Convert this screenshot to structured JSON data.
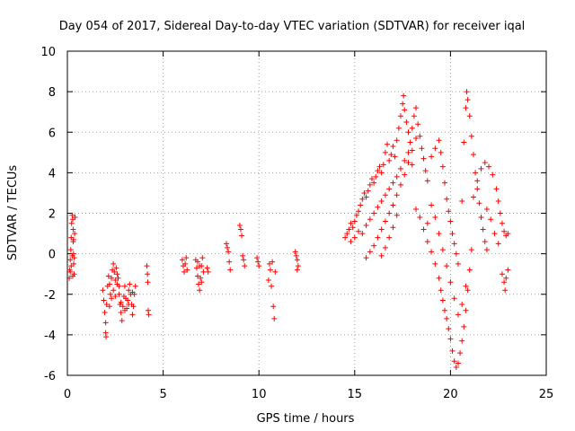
{
  "chart_data": {
    "type": "scatter",
    "title": "Day 054 of 2017, Sidereal Day-to-day VTEC variation (SDTVAR) for receiver iqal",
    "xlabel": "GPS time / hours",
    "ylabel": "SDTVAR / TECUs",
    "xlim": [
      0,
      25
    ],
    "ylim": [
      -6,
      10
    ],
    "xticks": [
      0,
      5,
      10,
      15,
      20,
      25
    ],
    "yticks": [
      -6,
      -4,
      -2,
      0,
      2,
      4,
      6,
      8,
      10
    ],
    "xtick_labels": [
      "0",
      "5",
      "10",
      "15",
      "20",
      "25"
    ],
    "ytick_labels": [
      "-6",
      "-4",
      "-2",
      "0",
      "2",
      "4",
      "6",
      "8",
      "10"
    ],
    "grid": true,
    "marker": "+",
    "series": [
      {
        "name": "SDTVAR",
        "color": "#ff0000",
        "points": [
          [
            0.1,
            -1.2
          ],
          [
            0.12,
            -0.8
          ],
          [
            0.15,
            -0.3
          ],
          [
            0.18,
            0.2
          ],
          [
            0.2,
            0.8
          ],
          [
            0.22,
            1.5
          ],
          [
            0.25,
            1.9
          ],
          [
            0.28,
            1.7
          ],
          [
            0.3,
            1.2
          ],
          [
            0.3,
            0.6
          ],
          [
            0.32,
            0.0
          ],
          [
            0.33,
            -0.5
          ],
          [
            0.35,
            -1.0
          ],
          [
            0.36,
            -0.2
          ],
          [
            0.38,
            1.0
          ],
          [
            0.4,
            1.8
          ],
          [
            0.15,
            -0.9
          ],
          [
            0.2,
            -0.6
          ],
          [
            0.25,
            -0.1
          ],
          [
            0.32,
            0.7
          ],
          [
            0.28,
            -1.1
          ],
          [
            1.85,
            -1.8
          ],
          [
            1.9,
            -2.3
          ],
          [
            1.95,
            -2.9
          ],
          [
            2.0,
            -3.4
          ],
          [
            2.0,
            -3.9
          ],
          [
            2.02,
            -4.1
          ],
          [
            2.05,
            -2.5
          ],
          [
            2.1,
            -1.6
          ],
          [
            2.15,
            -1.1
          ],
          [
            2.2,
            -1.5
          ],
          [
            2.25,
            -2.0
          ],
          [
            2.3,
            -1.2
          ],
          [
            2.35,
            -0.8
          ],
          [
            2.4,
            -0.5
          ],
          [
            2.45,
            -0.9
          ],
          [
            2.5,
            -1.3
          ],
          [
            2.55,
            -0.7
          ],
          [
            2.6,
            -1.0
          ],
          [
            2.2,
            -2.6
          ],
          [
            2.3,
            -2.2
          ],
          [
            2.4,
            -1.8
          ],
          [
            2.5,
            -2.1
          ],
          [
            2.6,
            -1.5
          ],
          [
            2.7,
            -2.0
          ],
          [
            2.75,
            -2.5
          ],
          [
            2.8,
            -2.9
          ],
          [
            2.85,
            -3.3
          ],
          [
            2.9,
            -2.6
          ],
          [
            2.95,
            -2.1
          ],
          [
            3.0,
            -1.6
          ],
          [
            3.05,
            -2.2
          ],
          [
            3.1,
            -2.7
          ],
          [
            3.15,
            -2.3
          ],
          [
            3.2,
            -1.8
          ],
          [
            3.25,
            -1.5
          ],
          [
            3.3,
            -2.0
          ],
          [
            3.35,
            -2.5
          ],
          [
            3.4,
            -3.0
          ],
          [
            3.45,
            -2.6
          ],
          [
            3.5,
            -2.0
          ],
          [
            3.55,
            -1.6
          ],
          [
            2.65,
            -1.2
          ],
          [
            2.7,
            -1.6
          ],
          [
            2.8,
            -2.4
          ],
          [
            3.0,
            -2.8
          ],
          [
            3.2,
            -2.5
          ],
          [
            3.4,
            -1.9
          ],
          [
            4.15,
            -0.6
          ],
          [
            4.18,
            -1.0
          ],
          [
            4.2,
            -1.4
          ],
          [
            4.22,
            -2.8
          ],
          [
            4.25,
            -3.0
          ],
          [
            6.0,
            -0.3
          ],
          [
            6.05,
            -0.6
          ],
          [
            6.1,
            -0.9
          ],
          [
            6.15,
            -0.5
          ],
          [
            6.2,
            -0.2
          ],
          [
            6.25,
            -0.8
          ],
          [
            6.7,
            -0.3
          ],
          [
            6.75,
            -0.7
          ],
          [
            6.8,
            -1.1
          ],
          [
            6.85,
            -1.5
          ],
          [
            6.9,
            -1.8
          ],
          [
            6.95,
            -1.2
          ],
          [
            7.0,
            -0.6
          ],
          [
            7.05,
            -0.2
          ],
          [
            7.1,
            -0.9
          ],
          [
            6.8,
            -0.4
          ],
          [
            6.9,
            -0.6
          ],
          [
            7.0,
            -1.4
          ],
          [
            7.3,
            -0.7
          ],
          [
            7.35,
            -0.9
          ],
          [
            8.3,
            0.5
          ],
          [
            8.35,
            0.3
          ],
          [
            8.4,
            0.1
          ],
          [
            8.45,
            -0.4
          ],
          [
            8.5,
            -0.8
          ],
          [
            9.0,
            1.4
          ],
          [
            9.05,
            1.2
          ],
          [
            9.1,
            0.9
          ],
          [
            9.15,
            -0.1
          ],
          [
            9.2,
            -0.3
          ],
          [
            9.25,
            -0.6
          ],
          [
            9.9,
            -0.2
          ],
          [
            9.95,
            -0.4
          ],
          [
            10.0,
            -0.6
          ],
          [
            10.5,
            -1.3
          ],
          [
            10.55,
            -0.5
          ],
          [
            10.6,
            -0.8
          ],
          [
            10.65,
            -1.6
          ],
          [
            10.7,
            -0.4
          ],
          [
            10.75,
            -2.6
          ],
          [
            10.8,
            -3.2
          ],
          [
            10.85,
            -0.9
          ],
          [
            11.9,
            0.1
          ],
          [
            11.95,
            -0.1
          ],
          [
            12.0,
            -0.3
          ],
          [
            12.05,
            -0.6
          ],
          [
            12.0,
            -0.8
          ],
          [
            14.5,
            0.8
          ],
          [
            14.6,
            1.0
          ],
          [
            14.7,
            1.2
          ],
          [
            14.8,
            1.5
          ],
          [
            14.9,
            1.3
          ],
          [
            15.0,
            1.6
          ],
          [
            15.1,
            1.9
          ],
          [
            15.2,
            2.1
          ],
          [
            15.3,
            2.4
          ],
          [
            15.4,
            2.7
          ],
          [
            15.5,
            3.0
          ],
          [
            15.6,
            2.8
          ],
          [
            15.7,
            3.1
          ],
          [
            15.8,
            3.4
          ],
          [
            15.9,
            3.7
          ],
          [
            16.0,
            3.5
          ],
          [
            16.1,
            3.8
          ],
          [
            16.2,
            4.1
          ],
          [
            16.3,
            4.3
          ],
          [
            16.4,
            4.0
          ],
          [
            16.5,
            4.4
          ],
          [
            16.6,
            5.0
          ],
          [
            16.7,
            5.4
          ],
          [
            16.8,
            4.6
          ],
          [
            16.9,
            4.9
          ],
          [
            17.0,
            5.3
          ],
          [
            17.1,
            4.8
          ],
          [
            17.2,
            5.6
          ],
          [
            17.3,
            6.2
          ],
          [
            17.4,
            6.8
          ],
          [
            17.5,
            7.4
          ],
          [
            17.55,
            7.8
          ],
          [
            17.6,
            7.1
          ],
          [
            17.7,
            6.5
          ],
          [
            17.8,
            6.0
          ],
          [
            17.9,
            5.5
          ],
          [
            18.0,
            6.2
          ],
          [
            18.1,
            6.8
          ],
          [
            18.2,
            7.2
          ],
          [
            18.3,
            6.4
          ],
          [
            18.4,
            5.8
          ],
          [
            18.5,
            5.2
          ],
          [
            18.6,
            4.7
          ],
          [
            18.7,
            4.1
          ],
          [
            18.8,
            3.6
          ],
          [
            14.8,
            0.6
          ],
          [
            15.0,
            0.8
          ],
          [
            15.2,
            1.1
          ],
          [
            15.4,
            1.0
          ],
          [
            15.6,
            1.4
          ],
          [
            15.8,
            1.7
          ],
          [
            16.0,
            2.0
          ],
          [
            16.2,
            2.3
          ],
          [
            16.4,
            2.6
          ],
          [
            16.6,
            2.9
          ],
          [
            16.8,
            3.2
          ],
          [
            17.0,
            3.5
          ],
          [
            17.2,
            3.8
          ],
          [
            17.4,
            4.2
          ],
          [
            17.6,
            4.6
          ],
          [
            17.8,
            5.0
          ],
          [
            18.0,
            4.4
          ],
          [
            15.6,
            -0.2
          ],
          [
            15.8,
            0.1
          ],
          [
            16.0,
            0.4
          ],
          [
            16.2,
            0.8
          ],
          [
            16.4,
            1.2
          ],
          [
            16.6,
            1.6
          ],
          [
            16.8,
            2.0
          ],
          [
            17.0,
            2.4
          ],
          [
            17.2,
            2.9
          ],
          [
            17.4,
            3.4
          ],
          [
            17.6,
            3.9
          ],
          [
            17.8,
            4.5
          ],
          [
            18.0,
            5.1
          ],
          [
            18.2,
            5.7
          ],
          [
            16.4,
            -0.1
          ],
          [
            16.6,
            0.3
          ],
          [
            16.8,
            0.8
          ],
          [
            17.0,
            1.3
          ],
          [
            17.2,
            1.9
          ],
          [
            18.2,
            2.2
          ],
          [
            18.4,
            1.8
          ],
          [
            18.6,
            1.2
          ],
          [
            18.8,
            0.6
          ],
          [
            19.0,
            0.1
          ],
          [
            19.2,
            -0.5
          ],
          [
            19.4,
            -1.2
          ],
          [
            19.5,
            -1.8
          ],
          [
            19.6,
            -2.3
          ],
          [
            19.7,
            -2.8
          ],
          [
            19.8,
            -3.2
          ],
          [
            19.9,
            -3.7
          ],
          [
            20.0,
            -4.2
          ],
          [
            20.1,
            -4.8
          ],
          [
            20.2,
            -5.3
          ],
          [
            20.3,
            -5.6
          ],
          [
            20.4,
            -5.4
          ],
          [
            20.5,
            -4.9
          ],
          [
            20.6,
            -4.3
          ],
          [
            20.7,
            -3.6
          ],
          [
            20.8,
            -2.8
          ],
          [
            20.9,
            -1.8
          ],
          [
            21.0,
            -0.8
          ],
          [
            21.1,
            0.2
          ],
          [
            18.8,
            1.5
          ],
          [
            19.0,
            2.4
          ],
          [
            19.2,
            1.8
          ],
          [
            19.4,
            1.0
          ],
          [
            19.6,
            0.2
          ],
          [
            19.8,
            -0.6
          ],
          [
            20.0,
            -1.4
          ],
          [
            20.2,
            -2.2
          ],
          [
            20.4,
            -3.0
          ],
          [
            20.6,
            -2.5
          ],
          [
            20.8,
            -1.6
          ],
          [
            19.0,
            4.8
          ],
          [
            19.2,
            5.2
          ],
          [
            19.4,
            5.6
          ],
          [
            19.5,
            5.0
          ],
          [
            19.6,
            4.3
          ],
          [
            19.7,
            3.5
          ],
          [
            19.8,
            2.7
          ],
          [
            19.9,
            2.1
          ],
          [
            20.0,
            1.6
          ],
          [
            20.1,
            1.0
          ],
          [
            20.2,
            0.5
          ],
          [
            20.3,
            0.0
          ],
          [
            20.4,
            -0.5
          ],
          [
            20.6,
            2.6
          ],
          [
            20.7,
            5.5
          ],
          [
            20.8,
            7.2
          ],
          [
            20.85,
            8.0
          ],
          [
            20.9,
            7.6
          ],
          [
            21.0,
            6.8
          ],
          [
            21.1,
            5.8
          ],
          [
            21.2,
            4.9
          ],
          [
            21.3,
            4.0
          ],
          [
            21.4,
            3.2
          ],
          [
            21.5,
            2.5
          ],
          [
            21.6,
            1.8
          ],
          [
            21.7,
            1.2
          ],
          [
            21.8,
            0.6
          ],
          [
            21.9,
            0.2
          ],
          [
            21.2,
            2.8
          ],
          [
            21.4,
            3.6
          ],
          [
            21.6,
            4.2
          ],
          [
            21.8,
            4.5
          ],
          [
            22.0,
            4.3
          ],
          [
            22.2,
            3.9
          ],
          [
            22.4,
            3.2
          ],
          [
            22.5,
            2.6
          ],
          [
            22.6,
            2.0
          ],
          [
            22.7,
            1.5
          ],
          [
            22.8,
            1.1
          ],
          [
            22.9,
            0.9
          ],
          [
            23.0,
            1.0
          ],
          [
            21.9,
            2.2
          ],
          [
            22.1,
            1.7
          ],
          [
            22.3,
            1.0
          ],
          [
            22.5,
            0.5
          ],
          [
            22.7,
            -1.0
          ],
          [
            22.8,
            -1.4
          ],
          [
            22.85,
            -1.8
          ],
          [
            22.9,
            -1.2
          ],
          [
            23.0,
            -0.8
          ]
        ]
      }
    ]
  }
}
